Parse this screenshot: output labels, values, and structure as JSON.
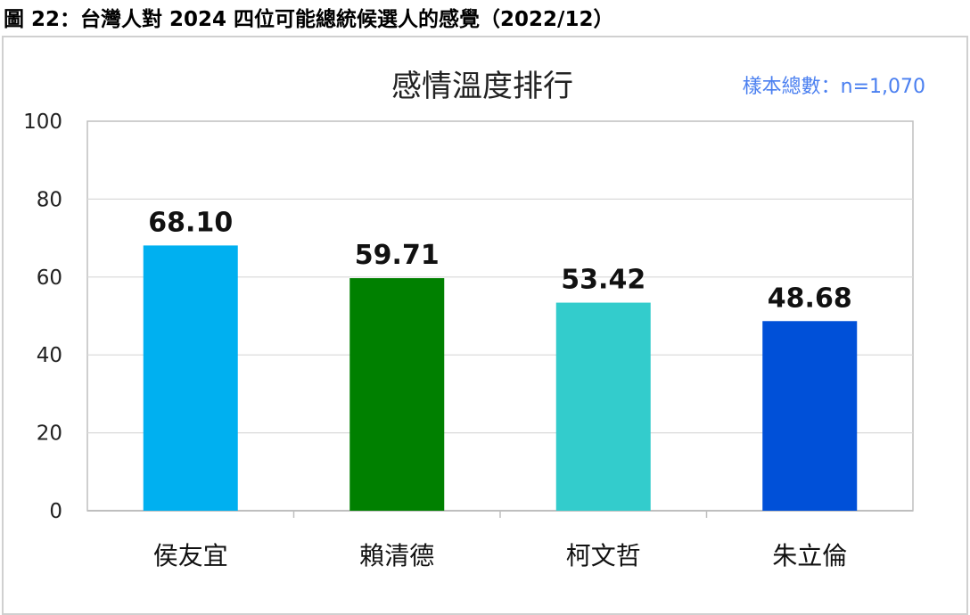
{
  "figure_caption": "圖 22：台灣人對 2024 四位可能總統候選人的感覺（2022/12）",
  "chart_data": {
    "type": "bar",
    "title": "感情溫度排行",
    "sample_note": "樣本總數：n=1,070",
    "categories": [
      "侯友宜",
      "賴清德",
      "柯文哲",
      "朱立倫"
    ],
    "values": [
      68.1,
      59.71,
      53.42,
      48.68
    ],
    "value_labels": [
      "68.10",
      "59.71",
      "53.42",
      "48.68"
    ],
    "bar_colors": [
      "#00b0f0",
      "#008000",
      "#33cccc",
      "#0050d8"
    ],
    "ylim": [
      0,
      100
    ],
    "yticks": [
      0,
      20,
      40,
      60,
      80,
      100
    ],
    "xlabel": "",
    "ylabel": "",
    "grid": true,
    "legend": "none",
    "colors": {
      "grid": "#d9d9d9",
      "axis": "#bfbfbf",
      "sample_note": "#4a7ff0",
      "plot_border": "#bfbfbf"
    }
  }
}
